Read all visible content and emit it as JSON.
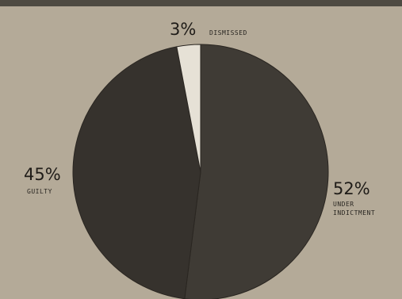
{
  "chart_data": {
    "type": "pie",
    "title": "",
    "slices": [
      {
        "label": "UNDER INDICTMENT",
        "label_lines": [
          "UNDER",
          "INDICTMENT"
        ],
        "percent_text": "52%",
        "value": 52,
        "color": "#3f3b35"
      },
      {
        "label": "GUILTY",
        "label_lines": [
          "GUILTY"
        ],
        "percent_text": "45%",
        "value": 45,
        "color": "#36322d"
      },
      {
        "label": "DISMISSED",
        "label_lines": [
          "DISMISSED"
        ],
        "percent_text": "3%",
        "value": 3,
        "color": "#e6e1d6"
      }
    ],
    "start_angle_deg": 0,
    "direction": "clockwise"
  }
}
